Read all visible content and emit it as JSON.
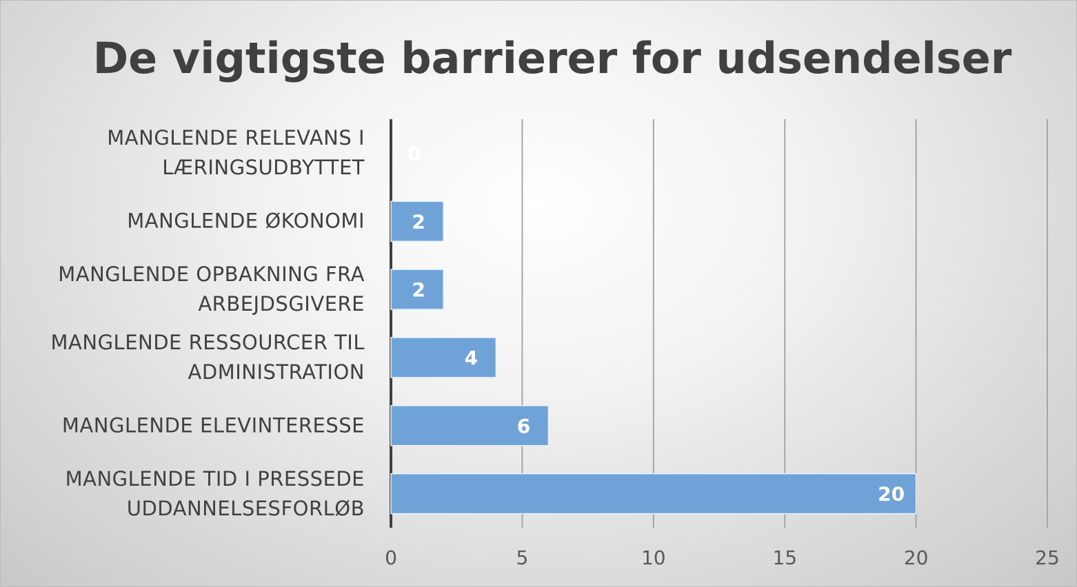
{
  "chart_data": {
    "type": "bar",
    "orientation": "horizontal",
    "title": "De vigtigste barrierer for udsendelser",
    "categories": [
      "MANGLENDE RELEVANS I LÆRINGSUDBYTTET",
      "MANGLENDE ØKONOMI",
      "MANGLENDE OPBAKNING FRA ARBEJDSGIVERE",
      "MANGLENDE RESSOURCER TIL ADMINISTRATION",
      "MANGLENDE ELEVINTERESSE",
      "MANGLENDE TID I PRESSEDE UDDANNELSESFORLØB"
    ],
    "values": [
      0,
      2,
      2,
      4,
      6,
      20
    ],
    "color": "#6fa3d8",
    "xlim": [
      0,
      25
    ],
    "xticks": [
      0,
      5,
      10,
      15,
      20,
      25
    ],
    "grid": true
  }
}
